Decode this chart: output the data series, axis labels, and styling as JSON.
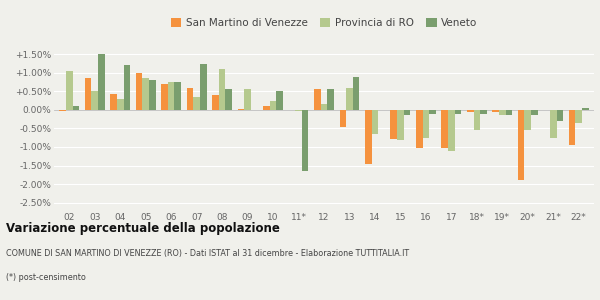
{
  "categories": [
    "02",
    "03",
    "04",
    "05",
    "06",
    "07",
    "08",
    "09",
    "10",
    "11*",
    "12",
    "13",
    "14",
    "15",
    "16",
    "17",
    "18*",
    "19*",
    "20*",
    "21*",
    "22*"
  ],
  "san_martino": [
    -0.02,
    0.85,
    0.42,
    1.0,
    0.7,
    0.6,
    0.4,
    0.02,
    0.1,
    0.0,
    0.55,
    -0.45,
    -1.45,
    -0.78,
    -1.02,
    -1.02,
    -0.05,
    -0.05,
    -1.9,
    0.0,
    -0.95
  ],
  "provincia_ro": [
    1.05,
    0.5,
    0.3,
    0.85,
    0.75,
    0.35,
    1.1,
    0.55,
    0.25,
    -0.02,
    0.15,
    0.6,
    -0.65,
    -0.8,
    -0.75,
    -1.1,
    -0.55,
    -0.15,
    -0.55,
    -0.75,
    -0.35
  ],
  "veneto": [
    0.1,
    1.5,
    1.2,
    0.8,
    0.75,
    1.25,
    0.55,
    0.0,
    0.5,
    -1.65,
    0.55,
    0.9,
    -0.0,
    -0.15,
    -0.1,
    -0.1,
    -0.1,
    -0.15,
    -0.15,
    -0.3,
    0.05
  ],
  "color_san_martino": "#f5923e",
  "color_provincia": "#b5c98e",
  "color_veneto": "#7a9e6e",
  "bg_color": "#f0f0eb",
  "title": "Variazione percentuale della popolazione",
  "subtitle": "COMUNE DI SAN MARTINO DI VENEZZE (RO) - Dati ISTAT al 31 dicembre - Elaborazione TUTTITALIA.IT",
  "footnote": "(*) post-censimento",
  "ylim": [
    -2.7,
    1.75
  ],
  "yticks": [
    -2.5,
    -2.0,
    -1.5,
    -1.0,
    -0.5,
    0.0,
    0.5,
    1.0,
    1.5
  ]
}
